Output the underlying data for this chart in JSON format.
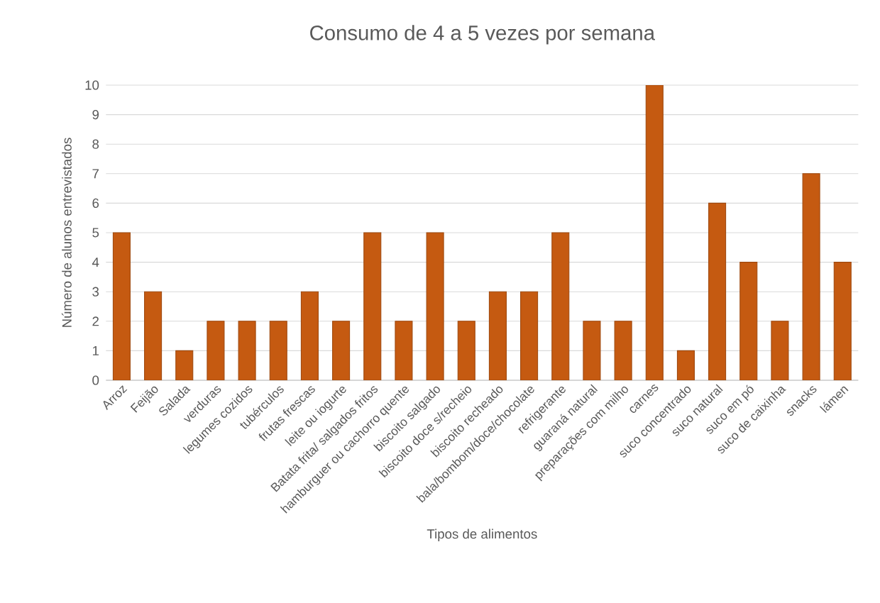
{
  "chart_data": {
    "type": "bar",
    "title": "Consumo de 4 a 5 vezes por semana",
    "xlabel": "Tipos de alimentos",
    "ylabel": "Número de alunos entrevistados",
    "categories": [
      "Arroz",
      "Feijão",
      "Salada",
      "verduras",
      "legumes cozidos",
      "tubérculos",
      "frutas frescas",
      "leite ou iogurte",
      "Batata frita/ salgados fritos",
      "hamburguer ou cachorro quente",
      "biscoito salgado",
      "biscoito doce s/recheio",
      "biscoito recheado",
      "bala/bombom/doce/chocolate",
      "refrigerante",
      "guaraná natural",
      "preparações com milho",
      "carnes",
      "suco concentrado",
      "suco natural",
      "suco em pó",
      "suco de caixinha",
      "snacks",
      "lámen"
    ],
    "values": [
      5,
      3,
      1,
      2,
      2,
      2,
      3,
      2,
      5,
      2,
      5,
      2,
      3,
      3,
      5,
      2,
      2,
      10,
      1,
      6,
      4,
      2,
      7,
      4
    ],
    "color": "#c55a11",
    "ylim": [
      0,
      10
    ],
    "yticks": [
      0,
      1,
      2,
      3,
      4,
      5,
      6,
      7,
      8,
      9,
      10
    ],
    "grid": "y"
  }
}
